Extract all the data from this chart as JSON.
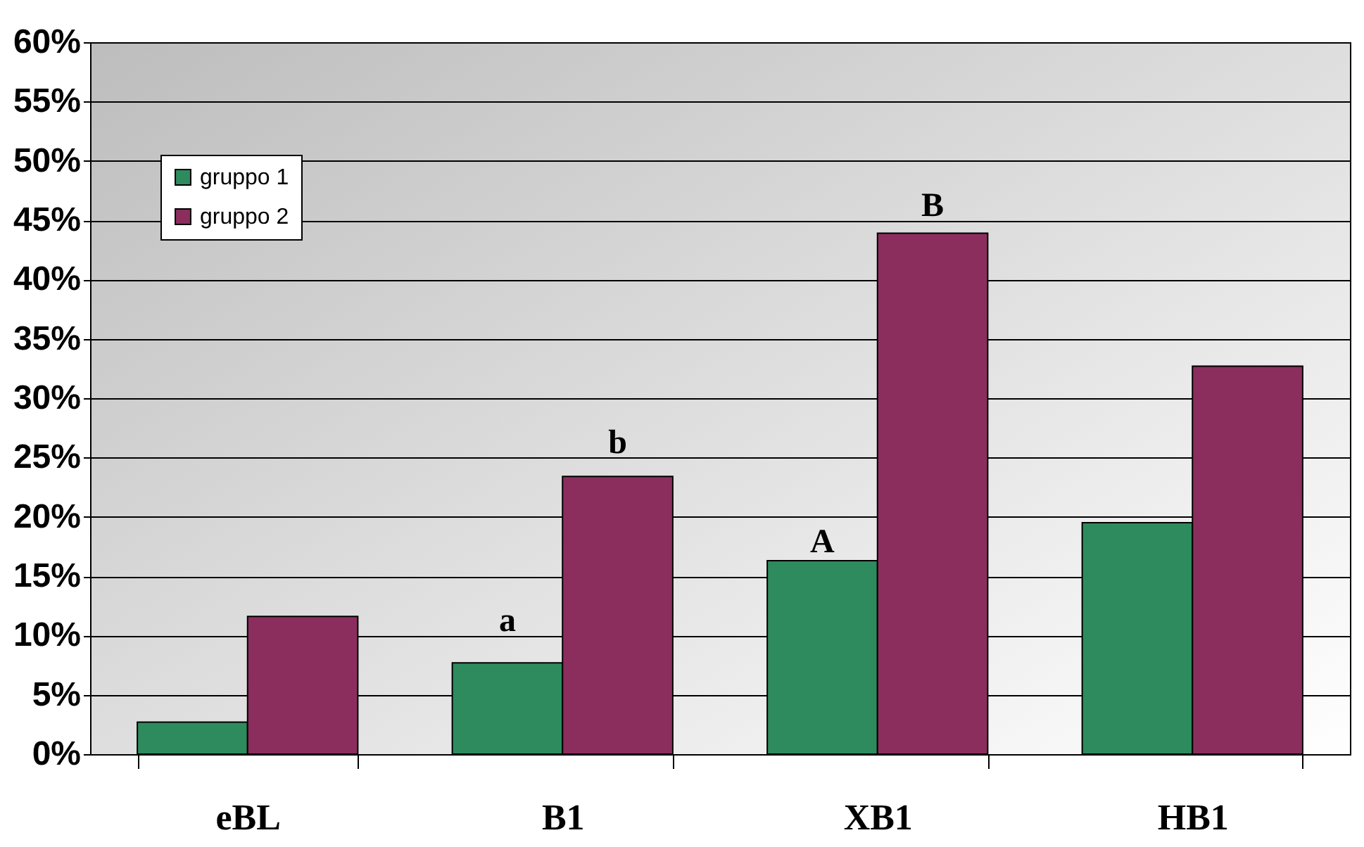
{
  "chart_data": {
    "type": "bar",
    "categories": [
      "eBL",
      "B1",
      "XB1",
      "HB1"
    ],
    "series": [
      {
        "name": "gruppo 1",
        "color": "#2e8b5e",
        "values": [
          2.7,
          7.7,
          16.3,
          19.5
        ]
      },
      {
        "name": "gruppo 2",
        "color": "#8b2e5e",
        "values": [
          11.6,
          23.4,
          43.9,
          32.7
        ]
      }
    ],
    "ylim": [
      0,
      60
    ],
    "yticks": [
      {
        "value": 0,
        "label": "0%"
      },
      {
        "value": 5,
        "label": "5%"
      },
      {
        "value": 10,
        "label": "10%"
      },
      {
        "value": 15,
        "label": "15%"
      },
      {
        "value": 20,
        "label": "20%"
      },
      {
        "value": 25,
        "label": "25%"
      },
      {
        "value": 30,
        "label": "30%"
      },
      {
        "value": 35,
        "label": "35%"
      },
      {
        "value": 40,
        "label": "40%"
      },
      {
        "value": 45,
        "label": "45%"
      },
      {
        "value": 50,
        "label": "50%"
      },
      {
        "value": 55,
        "label": "55%"
      },
      {
        "value": 60,
        "label": "60%"
      }
    ],
    "annotations": [
      {
        "text": "a",
        "x": "B1",
        "y": 7.7
      },
      {
        "text": "b",
        "x": "B1",
        "y": 23.4
      },
      {
        "text": "A",
        "x": "XB1",
        "y": 16.3
      },
      {
        "text": "B",
        "x": "XB1",
        "y": 43.9
      }
    ],
    "grid": "y",
    "legend": "top left"
  }
}
